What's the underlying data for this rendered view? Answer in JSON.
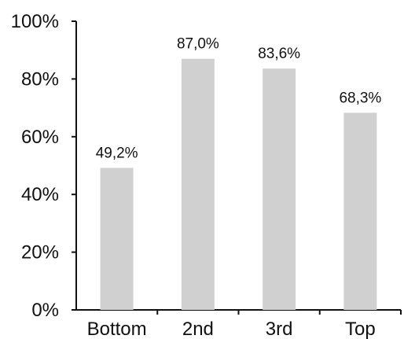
{
  "chart_data": {
    "type": "bar",
    "categories": [
      "Bottom",
      "2nd",
      "3rd",
      "Top"
    ],
    "values": [
      49.2,
      87.0,
      83.6,
      68.3
    ],
    "data_labels": [
      "49,2%",
      "87,0%",
      "83,6%",
      "68,3%"
    ],
    "ylim": [
      0,
      100
    ],
    "yticks": [
      0,
      20,
      40,
      60,
      80,
      100
    ],
    "ytick_labels": [
      "0%",
      "20%",
      "40%",
      "60%",
      "80%",
      "100%"
    ],
    "title": "",
    "xlabel": "",
    "ylabel": "",
    "grid": false,
    "legend": "none",
    "colors": {
      "bar": "#d0d0d0",
      "axis": "#111111",
      "text": "#111111"
    }
  }
}
